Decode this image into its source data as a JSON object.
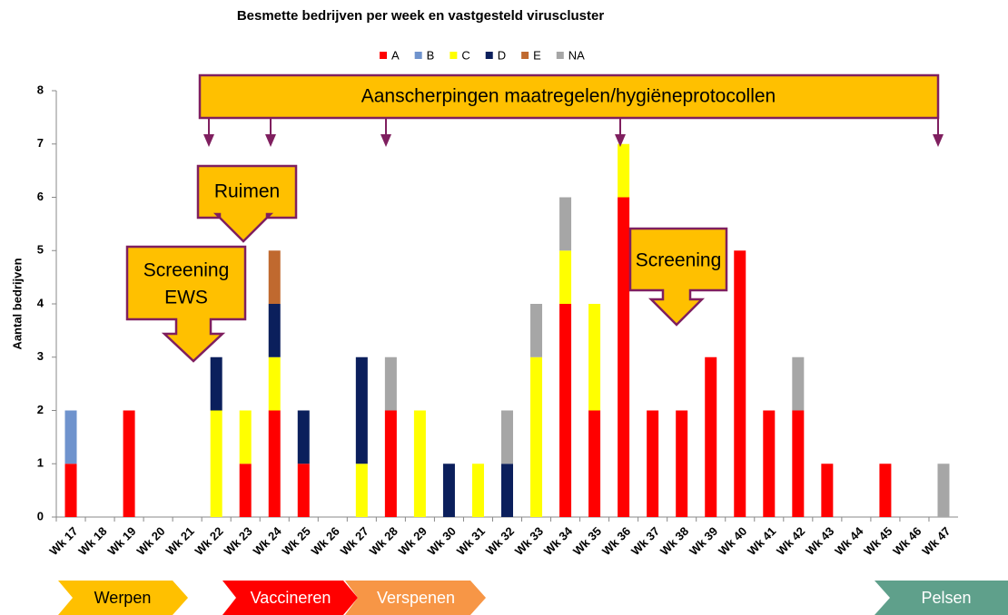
{
  "chart_data": {
    "type": "stacked_bar",
    "title": "Besmette bedrijven per week en vastgesteld viruscluster",
    "y_label": "Aantal bedrijven",
    "categories": [
      "Wk 17",
      "Wk 18",
      "Wk 19",
      "Wk 20",
      "Wk 21",
      "Wk 22",
      "Wk 23",
      "Wk 24",
      "Wk 25",
      "Wk 26",
      "Wk 27",
      "Wk 28",
      "Wk 29",
      "Wk 30",
      "Wk 31",
      "Wk 32",
      "Wk 33",
      "Wk 34",
      "Wk 35",
      "Wk 36",
      "Wk 37",
      "Wk 38",
      "Wk 39",
      "Wk 40",
      "Wk 41",
      "Wk 42",
      "Wk 43",
      "Wk 44",
      "Wk 45",
      "Wk 46",
      "Wk 47"
    ],
    "series": [
      {
        "name": "A",
        "color": "#ff0000",
        "values": [
          1,
          0,
          2,
          0,
          0,
          0,
          1,
          2,
          1,
          0,
          0,
          2,
          0,
          0,
          0,
          0,
          0,
          4,
          2,
          6,
          2,
          2,
          3,
          5,
          2,
          2,
          1,
          0,
          1,
          0,
          0
        ]
      },
      {
        "name": "B",
        "color": "#6f93cd",
        "values": [
          1,
          0,
          0,
          0,
          0,
          0,
          0,
          0,
          0,
          0,
          0,
          0,
          0,
          0,
          0,
          0,
          0,
          0,
          0,
          0,
          0,
          0,
          0,
          0,
          0,
          0,
          0,
          0,
          0,
          0,
          0
        ]
      },
      {
        "name": "C",
        "color": "#ffff00",
        "values": [
          0,
          0,
          0,
          0,
          0,
          2,
          1,
          1,
          0,
          0,
          1,
          0,
          2,
          0,
          1,
          0,
          3,
          1,
          2,
          1,
          0,
          0,
          0,
          0,
          0,
          0,
          0,
          0,
          0,
          0,
          0
        ]
      },
      {
        "name": "D",
        "color": "#0b1f5c",
        "values": [
          0,
          0,
          0,
          0,
          0,
          1,
          0,
          1,
          1,
          0,
          2,
          0,
          0,
          1,
          0,
          1,
          0,
          0,
          0,
          0,
          0,
          0,
          0,
          0,
          0,
          0,
          0,
          0,
          0,
          0,
          0
        ]
      },
      {
        "name": "E",
        "color": "#c0692f",
        "values": [
          0,
          0,
          0,
          0,
          0,
          0,
          0,
          1,
          0,
          0,
          0,
          0,
          0,
          0,
          0,
          0,
          0,
          0,
          0,
          0,
          0,
          0,
          0,
          0,
          0,
          0,
          0,
          0,
          0,
          0,
          0
        ]
      },
      {
        "name": "NA",
        "color": "#a6a6a6",
        "values": [
          0,
          0,
          0,
          0,
          0,
          0,
          0,
          0,
          0,
          0,
          0,
          1,
          0,
          0,
          0,
          1,
          1,
          1,
          0,
          0,
          0,
          0,
          0,
          0,
          0,
          1,
          0,
          0,
          0,
          0,
          1
        ]
      }
    ],
    "ylim": [
      0,
      8
    ],
    "yticks": [
      0,
      1,
      2,
      3,
      4,
      5,
      6,
      7,
      8
    ],
    "annotations": {
      "banner": "Aanscherpingen maatregelen/hygiëneprotocollen",
      "ruimen": "Ruimen",
      "screening_ews": [
        "Screening",
        "EWS"
      ],
      "screening": "Screening"
    },
    "phases": [
      "Werpen",
      "Vaccineren",
      "Verspenen",
      "Pelsen"
    ]
  }
}
